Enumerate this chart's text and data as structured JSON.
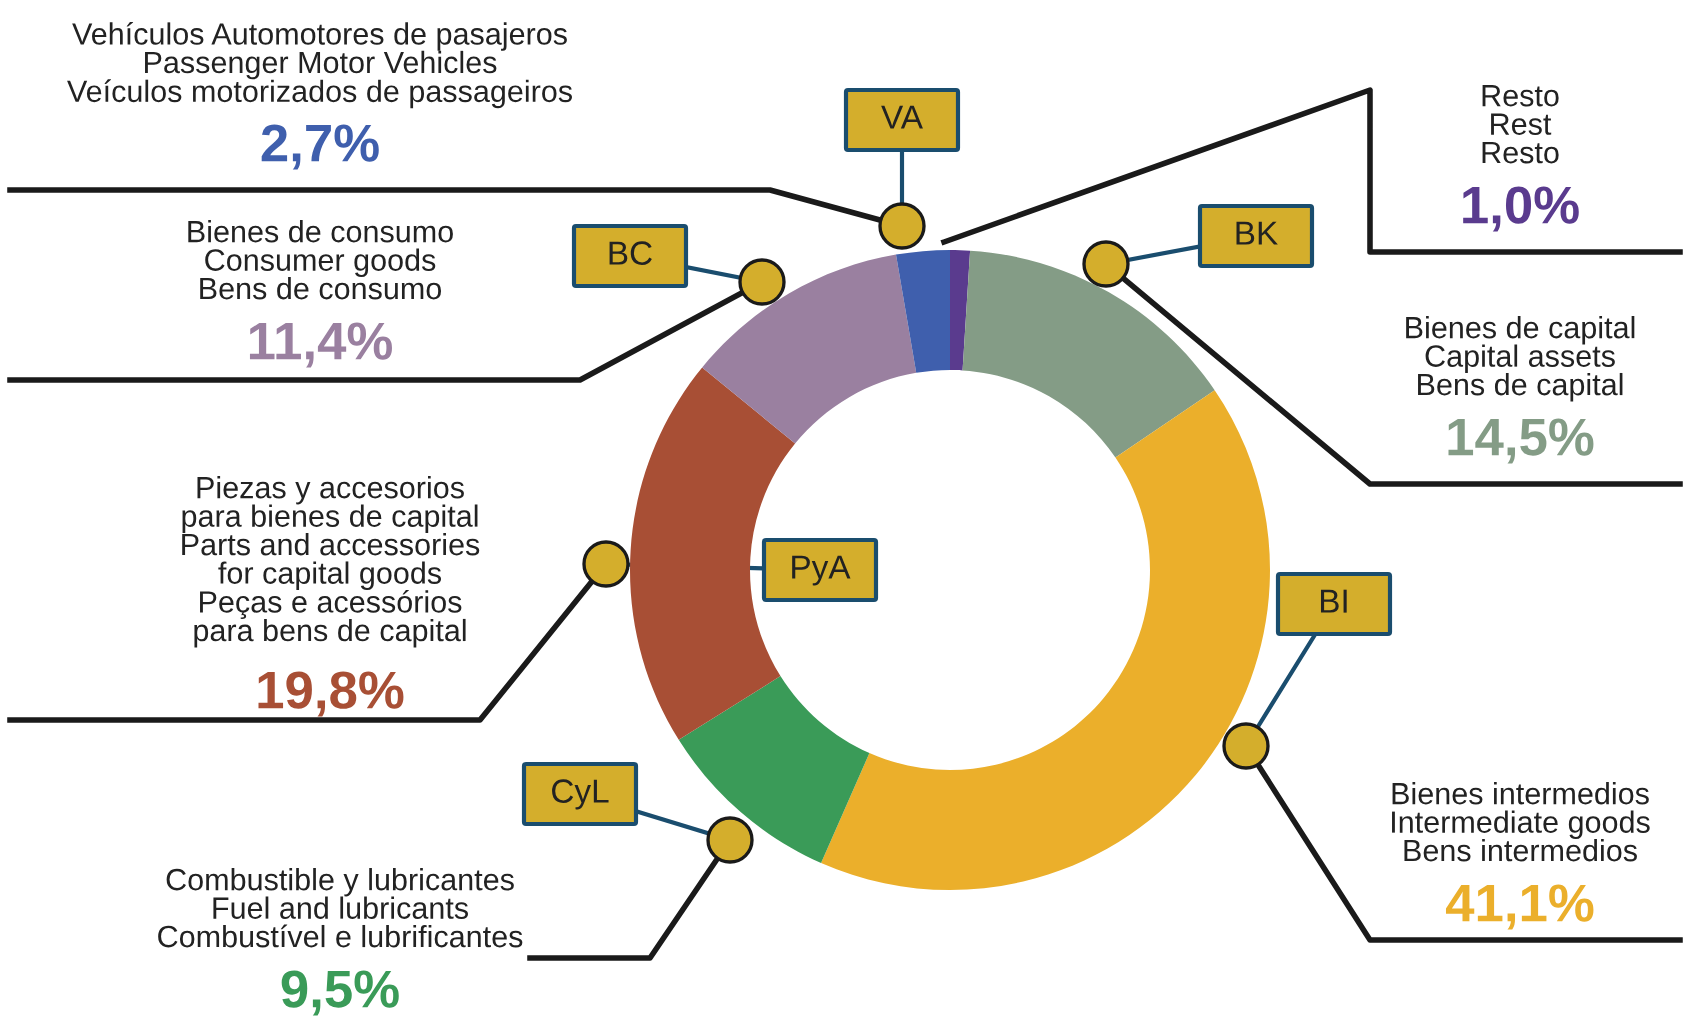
{
  "chart_data": {
    "type": "donut",
    "categories": [
      "Resto\nRest\nResto",
      "Bienes de capital\nCapital assets\nBens de capital",
      "Bienes intermedios\nIntermediate goods\nBens intermedios",
      "Combustible y lubricantes\nFuel and lubricants\nCombustível e lubrificantes",
      "Piezas y accesorios\npara bienes de capital\nParts and accessories\nfor capital goods\nPeças e acessórios\npara bens de capital",
      "Bienes de consumo\nConsumer goods\nBens de consumo",
      "Vehículos Automotores de pasajeros\nPassenger Motor Vehicles\nVeículos motorizados de passageiros"
    ],
    "values": [
      1.0,
      14.5,
      41.1,
      9.5,
      19.8,
      11.4,
      2.7
    ],
    "colors": [
      "#5a3b8e",
      "#849c86",
      "#ebaf2b",
      "#3a9b58",
      "#a84f35",
      "#9a80a0",
      "#3f5fad"
    ],
    "value_labels": [
      "1,0%",
      "14,5%",
      "41,1%",
      "9,5%",
      "19,8%",
      "11,4%",
      "2,7%"
    ],
    "annotations": [
      null,
      "BK",
      "BI",
      "CyL",
      "PyA",
      "BC",
      "VA"
    ],
    "legend": false
  }
}
